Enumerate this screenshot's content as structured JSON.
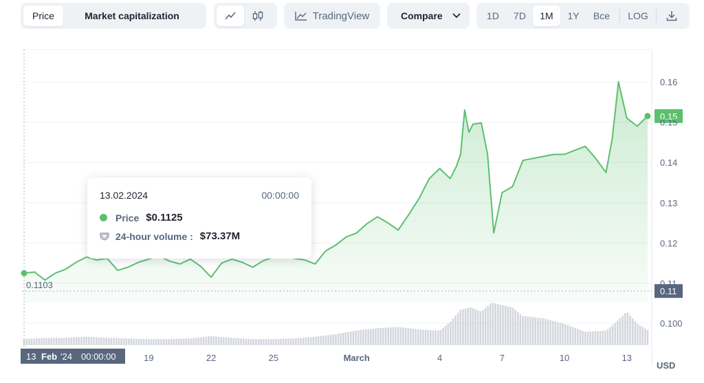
{
  "toolbar": {
    "view_tabs": [
      "Price",
      "Market capitalization"
    ],
    "active_view": "Price",
    "tradingview_label": "TradingView",
    "compare_label": "Compare",
    "ranges": [
      "1D",
      "7D",
      "1M",
      "1Y",
      "Bce"
    ],
    "active_range": "1M",
    "log_label": "LOG"
  },
  "tooltip": {
    "date": "13.02.2024",
    "time": "00:00:00",
    "price_label": "Price",
    "price_value": "$0.1125",
    "volume_label": "24-hour volume :",
    "volume_value": "$73.37M"
  },
  "labels": {
    "crosshair_date": "13",
    "crosshair_month": "Feb",
    "crosshair_year": "'24",
    "crosshair_time": "00:00:00",
    "start_price": "0.1103",
    "current_price_tag": "0.15",
    "low_price_tag": "0.11",
    "currency": "USD"
  },
  "colors": {
    "line": "#5cbf6e",
    "fill": "#5cbf6e",
    "volume": "#c4c9d2",
    "tag_dark": "#58667e"
  },
  "chart_data": {
    "type": "area",
    "title": "",
    "xlabel": "",
    "ylabel": "USD",
    "ylim": [
      0.1,
      0.17
    ],
    "y_ticks": [
      "0.16",
      "0.15",
      "0.14",
      "0.13",
      "0.12",
      "0.11"
    ],
    "volume_tick": "0.100",
    "x_ticks": [
      {
        "day": 13,
        "label": "13"
      },
      {
        "day": 19,
        "label": "19"
      },
      {
        "day": 22,
        "label": "22"
      },
      {
        "day": 25,
        "label": "25"
      },
      {
        "day": 29,
        "label": "March"
      },
      {
        "day": 33,
        "label": "4"
      },
      {
        "day": 36,
        "label": "7"
      },
      {
        "day": 39,
        "label": "10"
      },
      {
        "day": 42,
        "label": "13"
      }
    ],
    "series": [
      {
        "name": "Price",
        "x": [
          13.0,
          13.5,
          14.0,
          14.5,
          15.0,
          15.5,
          16.0,
          16.5,
          17.0,
          17.5,
          18.0,
          18.5,
          19.0,
          19.5,
          20.0,
          20.5,
          21.0,
          21.5,
          22.0,
          22.5,
          23.0,
          23.5,
          24.0,
          24.5,
          25.0,
          25.5,
          26.0,
          26.5,
          27.0,
          27.5,
          28.0,
          28.5,
          29.0,
          29.5,
          30.0,
          30.5,
          31.0,
          31.5,
          32.0,
          32.5,
          33.0,
          33.3,
          33.5,
          33.8,
          34.0,
          34.2,
          34.4,
          34.6,
          35.0,
          35.3,
          35.6,
          36.0,
          36.5,
          37.0,
          37.5,
          38.0,
          38.5,
          39.0,
          39.5,
          40.0,
          40.5,
          41.0,
          41.3,
          41.6,
          42.0,
          42.5,
          43.0
        ],
        "values": [
          0.1125,
          0.1128,
          0.1108,
          0.1125,
          0.1135,
          0.1152,
          0.1165,
          0.1158,
          0.1162,
          0.1132,
          0.114,
          0.1152,
          0.116,
          0.1168,
          0.1155,
          0.1148,
          0.116,
          0.1142,
          0.1115,
          0.115,
          0.116,
          0.1152,
          0.114,
          0.1156,
          0.1165,
          0.117,
          0.1162,
          0.1158,
          0.1148,
          0.118,
          0.1195,
          0.1215,
          0.1225,
          0.1248,
          0.1265,
          0.125,
          0.1232,
          0.127,
          0.131,
          0.136,
          0.1385,
          0.137,
          0.136,
          0.139,
          0.142,
          0.153,
          0.1475,
          0.1495,
          0.1498,
          0.142,
          0.1225,
          0.1325,
          0.134,
          0.1405,
          0.141,
          0.1415,
          0.142,
          0.142,
          0.143,
          0.144,
          0.141,
          0.1375,
          0.146,
          0.16,
          0.151,
          0.149,
          0.1515
        ]
      },
      {
        "name": "24-hour volume",
        "x": [
          13,
          14,
          15,
          16,
          17,
          18,
          19,
          20,
          21,
          22,
          23,
          24,
          25,
          26,
          27,
          28,
          29,
          30,
          31,
          32,
          33,
          33.5,
          34,
          34.5,
          35,
          35.5,
          36,
          36.5,
          37,
          38,
          39,
          40,
          41,
          41.5,
          42,
          42.5,
          43
        ],
        "values": [
          10,
          12,
          12,
          14,
          12,
          11,
          10,
          10,
          11,
          15,
          12,
          10,
          10,
          11,
          14,
          18,
          24,
          28,
          30,
          26,
          24,
          38,
          58,
          62,
          55,
          70,
          66,
          62,
          48,
          44,
          35,
          22,
          24,
          38,
          55,
          35,
          25
        ]
      }
    ]
  }
}
